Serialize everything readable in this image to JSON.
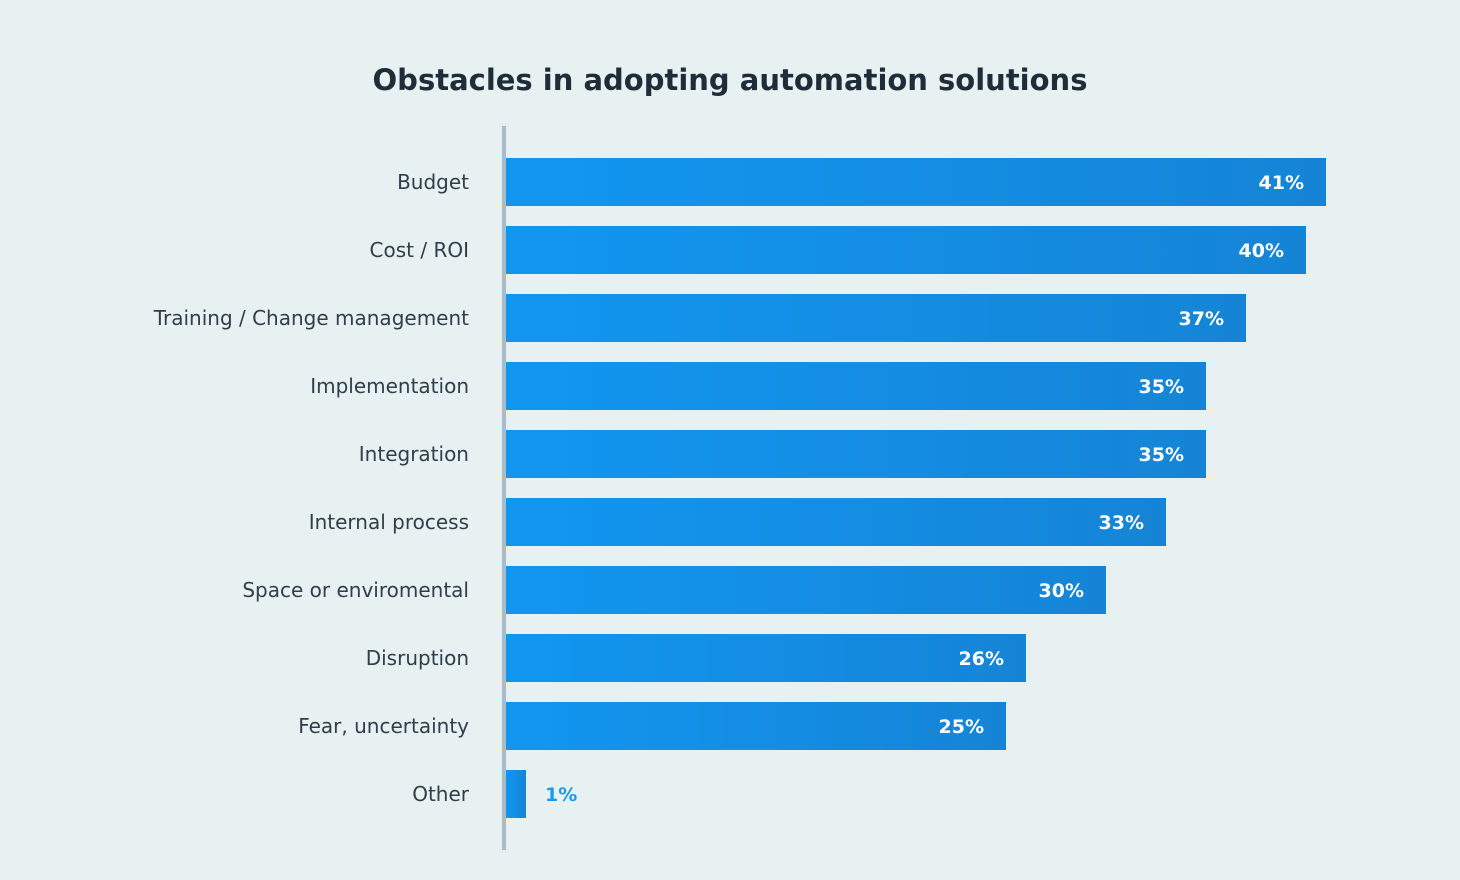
{
  "chart_data": {
    "type": "bar",
    "orientation": "horizontal",
    "title": "Obstacles in adopting automation solutions",
    "categories": [
      "Budget",
      "Cost / ROI",
      "Training / Change management",
      "Implementation",
      "Integration",
      "Internal process",
      "Space or enviromental",
      "Disruption",
      "Fear, uncertainty",
      "Other"
    ],
    "values": [
      41,
      40,
      37,
      35,
      35,
      33,
      30,
      26,
      25,
      1
    ],
    "labels": [
      "41%",
      "40%",
      "37%",
      "35%",
      "35%",
      "33%",
      "30%",
      "26%",
      "25%",
      "1%"
    ],
    "unit": "%",
    "xlim": [
      0,
      45
    ],
    "grid": false,
    "colors": {
      "bar_start": "#1297f1",
      "bar_end": "#1584d6",
      "axis": "#a9bcc8",
      "background": "#e8f1f1",
      "outside_label": "#1a9af0"
    }
  }
}
